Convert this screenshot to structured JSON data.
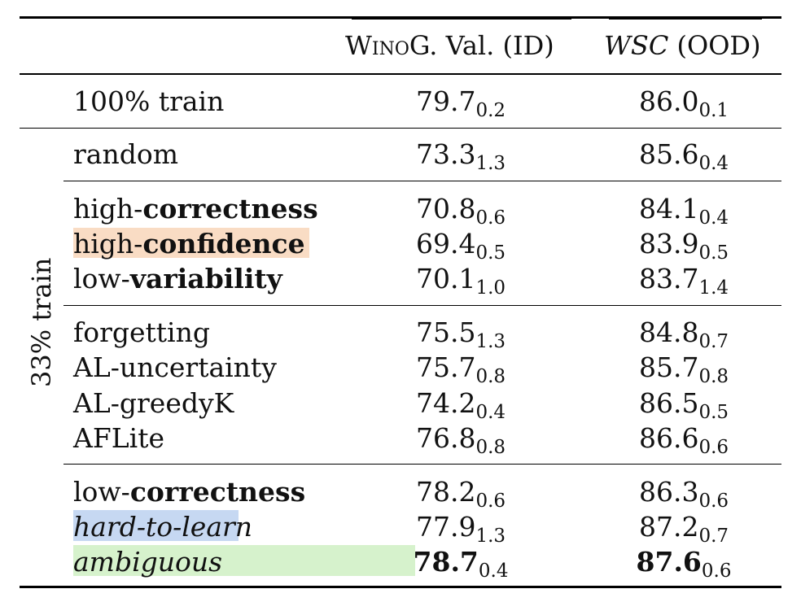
{
  "header": {
    "col1_prefix": "Wino",
    "col1_rest": "G. Val. (ID)",
    "col2_italic": "WSC",
    "col2_rest": " (OOD)"
  },
  "group_label": "33% train",
  "rows": {
    "full": {
      "label": "100% train",
      "v1": "79.7",
      "s1": "0.2",
      "v2": "86.0",
      "s2": "0.1"
    },
    "random": {
      "label": "random",
      "v1": "73.3",
      "s1": "1.3",
      "v2": "85.6",
      "s2": "0.4"
    },
    "high_correctness": {
      "prefix": "high-",
      "suffix": "correctness",
      "v1": "70.8",
      "s1": "0.6",
      "v2": "84.1",
      "s2": "0.4"
    },
    "high_confidence": {
      "prefix": "high-",
      "suffix": "confidence",
      "v1": "69.4",
      "s1": "0.5",
      "v2": "83.9",
      "s2": "0.5"
    },
    "low_variability": {
      "prefix": "low-",
      "suffix": "variability",
      "v1": "70.1",
      "s1": "1.0",
      "v2": "83.7",
      "s2": "1.4"
    },
    "forgetting": {
      "label": "forgetting",
      "v1": "75.5",
      "s1": "1.3",
      "v2": "84.8",
      "s2": "0.7"
    },
    "al_uncertainty": {
      "label": "AL-uncertainty",
      "v1": "75.7",
      "s1": "0.8",
      "v2": "85.7",
      "s2": "0.8"
    },
    "al_greedyk": {
      "label": "AL-greedyK",
      "v1": "74.2",
      "s1": "0.4",
      "v2": "86.5",
      "s2": "0.5"
    },
    "aflite": {
      "label": "AFLite",
      "v1": "76.8",
      "s1": "0.8",
      "v2": "86.6",
      "s2": "0.6"
    },
    "low_correctness": {
      "prefix": "low-",
      "suffix": "correctness",
      "v1": "78.2",
      "s1": "0.6",
      "v2": "86.3",
      "s2": "0.6"
    },
    "hard_to_learn": {
      "label": "hard-to-learn",
      "v1": "77.9",
      "s1": "1.3",
      "v2": "87.2",
      "s2": "0.7"
    },
    "ambiguous": {
      "label": "ambiguous",
      "v1": "78.7",
      "s1": "0.4",
      "v2": "87.6",
      "s2": "0.6"
    }
  },
  "colors": {
    "confidence_highlight": "#f9dcc4",
    "hard_highlight": "#c6d8f2",
    "ambiguous_highlight": "#d6f2cc"
  }
}
